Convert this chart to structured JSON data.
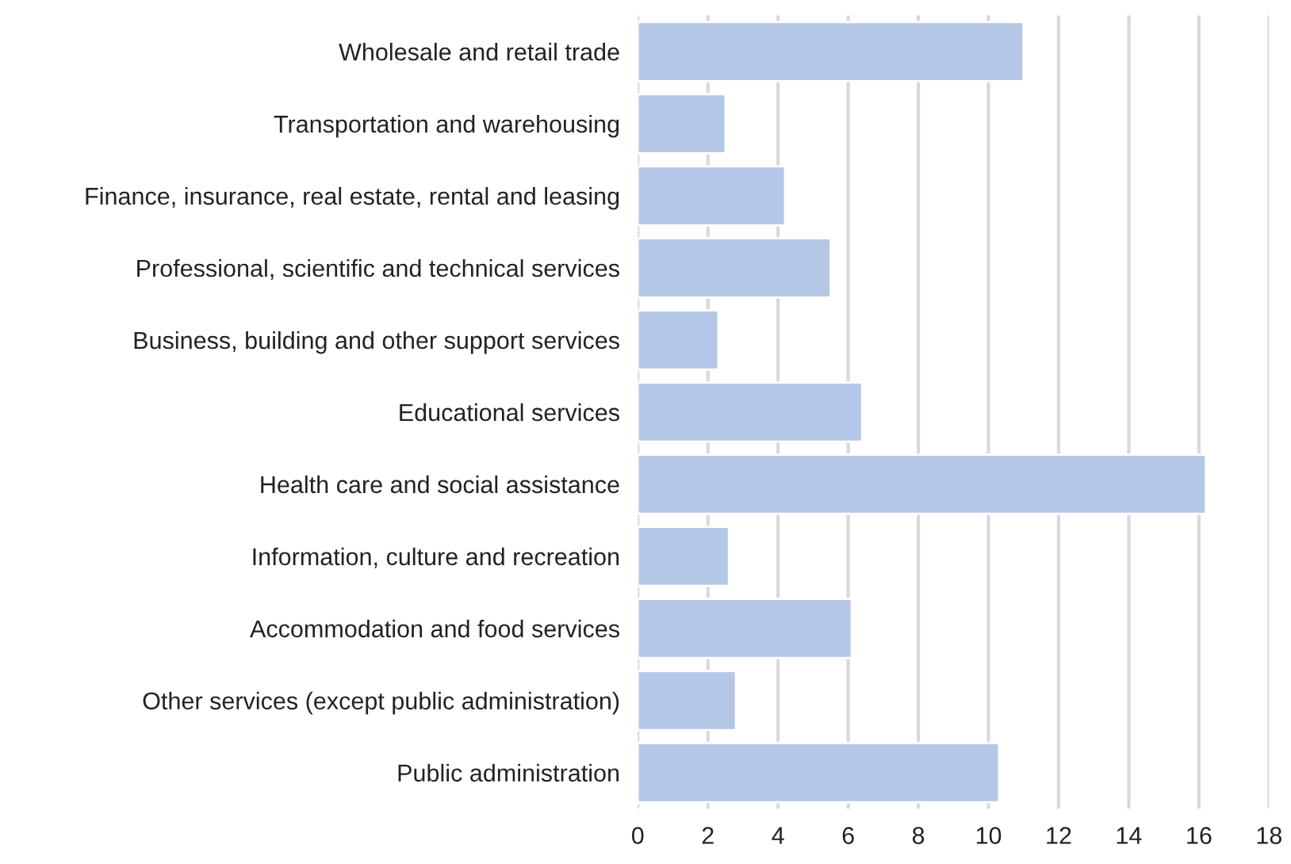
{
  "chart_data": {
    "type": "bar",
    "orientation": "horizontal",
    "categories": [
      "Wholesale and retail trade",
      "Transportation and warehousing",
      "Finance, insurance, real estate, rental and leasing",
      "Professional, scientific and technical services",
      "Business, building and other support services",
      "Educational services",
      "Health care and social assistance",
      "Information, culture and recreation",
      "Accommodation and food services",
      "Other services (except public administration)",
      "Public administration"
    ],
    "values": [
      11.0,
      2.5,
      4.2,
      5.5,
      2.3,
      6.4,
      16.2,
      2.6,
      6.1,
      2.8,
      10.3
    ],
    "color": "#b4c7e7",
    "xlim": [
      0,
      18
    ],
    "xticks": [
      0,
      2,
      4,
      6,
      8,
      10,
      12,
      14,
      16,
      18
    ],
    "grid": "x",
    "legend": false
  }
}
